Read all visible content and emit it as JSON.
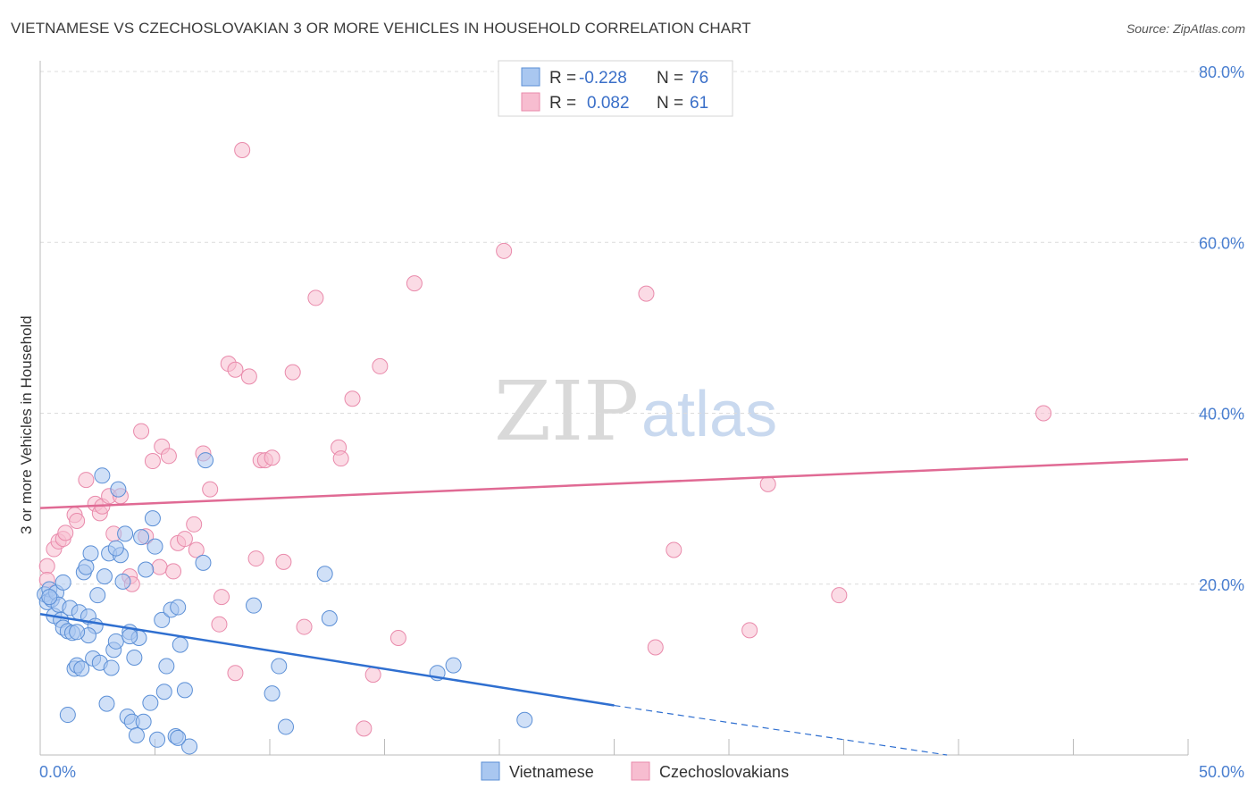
{
  "header": {
    "title": "VIETNAMESE VS CZECHOSLOVAKIAN 3 OR MORE VEHICLES IN HOUSEHOLD CORRELATION CHART",
    "source": "Source: ZipAtlas.com"
  },
  "watermark": {
    "zip": "ZIP",
    "atlas": "atlas"
  },
  "legend": {
    "rows": [
      {
        "r_label": "R =",
        "r_value": "-0.228",
        "n_label": "N =",
        "n_value": "76"
      },
      {
        "r_label": "R =",
        "r_value": "0.082",
        "n_label": "N =",
        "n_value": "61"
      }
    ]
  },
  "bottom_legend": {
    "series_a": "Vietnamese",
    "series_b": "Czechoslovakians"
  },
  "colors": {
    "vietnamese_fill": "#a9c7f0",
    "vietnamese_stroke": "#5b8fd6",
    "vietnamese_line": "#2f6fd0",
    "czech_fill": "#f7bdd0",
    "czech_stroke": "#e98aab",
    "czech_line": "#e06a94",
    "tick_text": "#4a7fd0"
  },
  "chart_data": {
    "type": "scatter",
    "title": "VIETNAMESE VS CZECHOSLOVAKIAN 3 OR MORE VEHICLES IN HOUSEHOLD CORRELATION CHART",
    "xlabel": "",
    "ylabel": "3 or more Vehicles in Household",
    "xlim": [
      0,
      50
    ],
    "ylim": [
      0,
      80
    ],
    "x_tick_labels": [
      "0.0%",
      "50.0%"
    ],
    "y_tick_labels": [
      "20.0%",
      "40.0%",
      "60.0%",
      "80.0%"
    ],
    "y_ticks": [
      20,
      40,
      60,
      80
    ],
    "grid": true,
    "legend_position": "top-center",
    "series": [
      {
        "name": "Vietnamese",
        "r": -0.228,
        "n": 76,
        "trend": {
          "x0": 0,
          "y0": 16.5,
          "x1": 25,
          "y1": 5.8,
          "dash_to_x": 39.5,
          "dash_to_y": 0
        },
        "points": [
          [
            0.2,
            18.8
          ],
          [
            0.3,
            17.9
          ],
          [
            0.4,
            19.4
          ],
          [
            0.5,
            18.2
          ],
          [
            0.6,
            16.3
          ],
          [
            0.7,
            19.0
          ],
          [
            0.8,
            17.6
          ],
          [
            0.9,
            15.8
          ],
          [
            1.0,
            20.2
          ],
          [
            1.0,
            14.9
          ],
          [
            1.2,
            14.5
          ],
          [
            1.3,
            17.2
          ],
          [
            1.4,
            14.3
          ],
          [
            1.5,
            10.1
          ],
          [
            1.6,
            10.5
          ],
          [
            1.7,
            16.7
          ],
          [
            1.8,
            10.1
          ],
          [
            1.9,
            21.4
          ],
          [
            2.0,
            22.0
          ],
          [
            2.1,
            16.2
          ],
          [
            2.2,
            23.6
          ],
          [
            2.3,
            11.3
          ],
          [
            2.4,
            15.1
          ],
          [
            2.5,
            18.7
          ],
          [
            2.6,
            10.8
          ],
          [
            2.7,
            32.7
          ],
          [
            2.8,
            20.9
          ],
          [
            2.9,
            6.0
          ],
          [
            3.0,
            23.6
          ],
          [
            3.1,
            10.2
          ],
          [
            3.2,
            12.3
          ],
          [
            3.3,
            13.3
          ],
          [
            3.4,
            31.1
          ],
          [
            3.5,
            23.4
          ],
          [
            3.6,
            20.3
          ],
          [
            3.7,
            25.9
          ],
          [
            3.8,
            4.5
          ],
          [
            3.9,
            14.4
          ],
          [
            4.0,
            3.9
          ],
          [
            4.1,
            11.4
          ],
          [
            4.2,
            2.3
          ],
          [
            4.3,
            13.7
          ],
          [
            4.4,
            25.5
          ],
          [
            4.5,
            3.9
          ],
          [
            4.6,
            21.7
          ],
          [
            4.8,
            6.1
          ],
          [
            4.9,
            27.7
          ],
          [
            5.0,
            24.4
          ],
          [
            5.1,
            1.8
          ],
          [
            5.3,
            15.8
          ],
          [
            5.4,
            7.4
          ],
          [
            5.5,
            10.4
          ],
          [
            5.7,
            17.0
          ],
          [
            5.9,
            2.2
          ],
          [
            6.0,
            17.3
          ],
          [
            6.1,
            12.9
          ],
          [
            6.3,
            7.6
          ],
          [
            6.5,
            1.0
          ],
          [
            7.1,
            22.5
          ],
          [
            7.2,
            34.5
          ],
          [
            9.3,
            17.5
          ],
          [
            10.1,
            7.2
          ],
          [
            10.4,
            10.4
          ],
          [
            10.7,
            3.3
          ],
          [
            12.4,
            21.2
          ],
          [
            12.6,
            16.0
          ],
          [
            17.3,
            9.6
          ],
          [
            18.0,
            10.5
          ],
          [
            21.1,
            4.1
          ],
          [
            1.2,
            4.7
          ],
          [
            3.3,
            24.2
          ],
          [
            2.1,
            14.0
          ],
          [
            1.6,
            14.4
          ],
          [
            3.9,
            13.9
          ],
          [
            6.0,
            2.0
          ],
          [
            0.4,
            18.5
          ]
        ]
      },
      {
        "name": "Czechoslovakians",
        "r": 0.082,
        "n": 61,
        "trend": {
          "x0": 0,
          "y0": 28.9,
          "x1": 50,
          "y1": 34.6
        },
        "points": [
          [
            0.3,
            22.1
          ],
          [
            0.3,
            20.5
          ],
          [
            0.6,
            24.1
          ],
          [
            0.8,
            25.0
          ],
          [
            1.0,
            25.3
          ],
          [
            1.1,
            26.0
          ],
          [
            1.5,
            28.1
          ],
          [
            1.6,
            27.4
          ],
          [
            2.0,
            32.2
          ],
          [
            2.4,
            29.4
          ],
          [
            2.6,
            28.3
          ],
          [
            2.7,
            29.1
          ],
          [
            3.0,
            30.3
          ],
          [
            3.2,
            25.9
          ],
          [
            3.5,
            30.3
          ],
          [
            3.9,
            20.9
          ],
          [
            4.0,
            20.0
          ],
          [
            4.4,
            37.9
          ],
          [
            4.6,
            25.6
          ],
          [
            4.9,
            34.4
          ],
          [
            5.2,
            22.0
          ],
          [
            5.3,
            36.1
          ],
          [
            5.6,
            35.0
          ],
          [
            5.8,
            21.5
          ],
          [
            6.0,
            24.8
          ],
          [
            6.3,
            25.3
          ],
          [
            6.7,
            27.0
          ],
          [
            6.8,
            24.0
          ],
          [
            7.1,
            35.3
          ],
          [
            7.4,
            31.1
          ],
          [
            7.8,
            15.3
          ],
          [
            7.9,
            18.5
          ],
          [
            8.2,
            45.8
          ],
          [
            8.5,
            45.1
          ],
          [
            8.5,
            9.6
          ],
          [
            9.1,
            44.3
          ],
          [
            9.4,
            23.0
          ],
          [
            9.6,
            34.5
          ],
          [
            9.8,
            34.5
          ],
          [
            10.1,
            34.8
          ],
          [
            10.6,
            22.6
          ],
          [
            11.0,
            44.8
          ],
          [
            11.5,
            15.0
          ],
          [
            12.0,
            53.5
          ],
          [
            13.0,
            36.0
          ],
          [
            13.1,
            34.7
          ],
          [
            13.6,
            41.7
          ],
          [
            14.1,
            3.1
          ],
          [
            14.5,
            9.4
          ],
          [
            14.8,
            45.5
          ],
          [
            15.6,
            13.7
          ],
          [
            16.3,
            55.2
          ],
          [
            20.2,
            59.0
          ],
          [
            26.4,
            54.0
          ],
          [
            26.8,
            12.6
          ],
          [
            27.6,
            24.0
          ],
          [
            30.9,
            14.6
          ],
          [
            31.7,
            31.7
          ],
          [
            34.8,
            18.7
          ],
          [
            43.7,
            40.0
          ],
          [
            8.8,
            70.8
          ]
        ]
      }
    ]
  }
}
